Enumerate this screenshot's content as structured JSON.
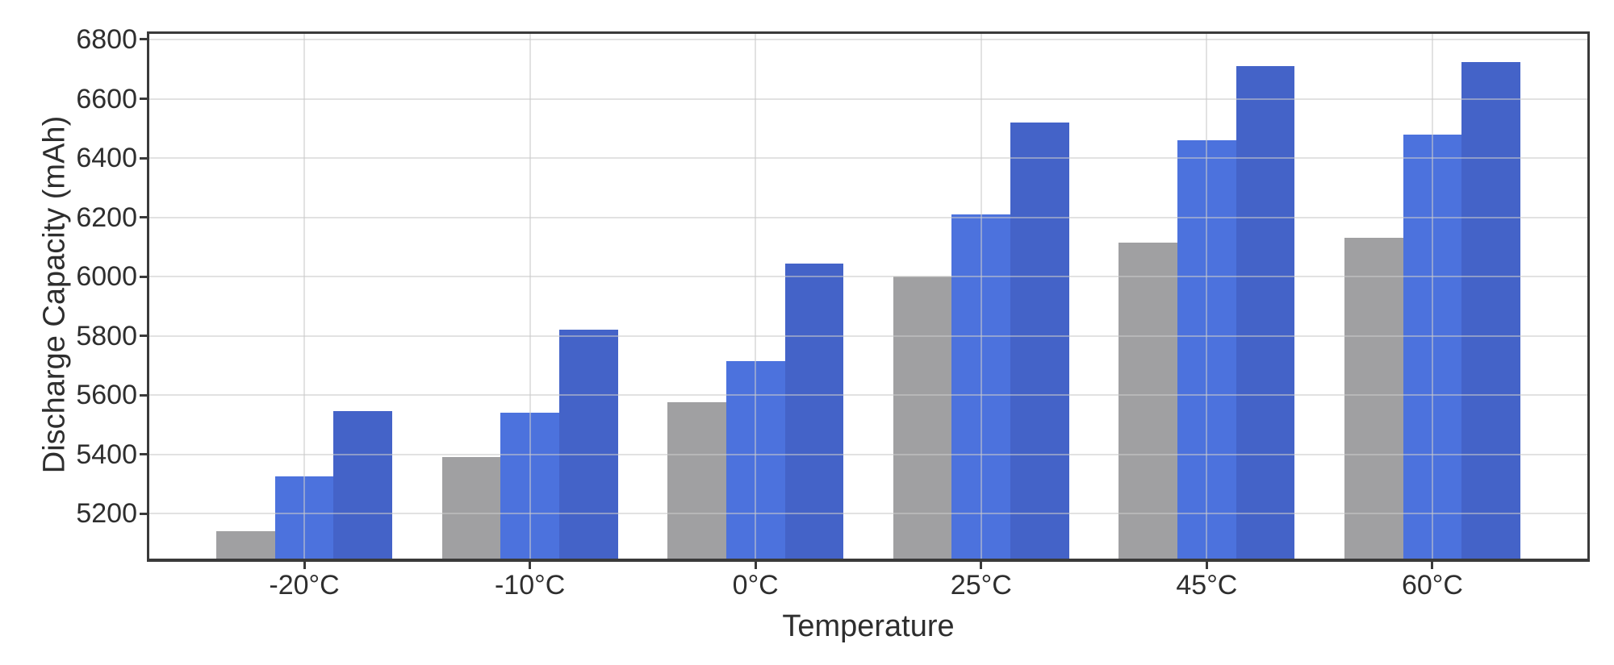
{
  "chart_data": {
    "type": "bar",
    "title": "",
    "xlabel": "Temperature",
    "ylabel": "Discharge Capacity (mAh)",
    "categories": [
      "-20°C",
      "-10°C",
      "0°C",
      "25°C",
      "45°C",
      "60°C"
    ],
    "series": [
      {
        "color": "#a0a0a2",
        "values": [
          5140,
          5390,
          5575,
          6000,
          6115,
          6130
        ]
      },
      {
        "color": "#4c72dd",
        "values": [
          5325,
          5540,
          5715,
          6210,
          6460,
          6480
        ]
      },
      {
        "color": "#4463c8",
        "values": [
          5545,
          5820,
          6045,
          6520,
          6710,
          6725
        ]
      }
    ],
    "yticks": [
      5200,
      5400,
      5600,
      5800,
      6000,
      6200,
      6400,
      6600,
      6800
    ],
    "ylim": [
      5048,
      6819
    ],
    "grid": true,
    "legend": false,
    "colors": {
      "spine": "#3a3a3a",
      "text": "#2e2e2e",
      "grid": "#cbcbcb"
    }
  }
}
